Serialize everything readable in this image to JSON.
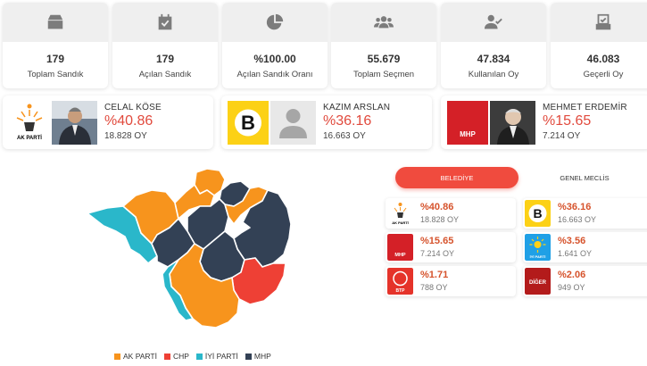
{
  "stats": [
    {
      "icon": "ballot-box-icon",
      "value": "179",
      "label": "Toplam Sandık"
    },
    {
      "icon": "calendar-check-icon",
      "value": "179",
      "label": "Açılan Sandık"
    },
    {
      "icon": "pie-chart-icon",
      "value": "%100.00",
      "label": "Açılan Sandık Oranı"
    },
    {
      "icon": "users-icon",
      "value": "55.679",
      "label": "Toplam Seçmen"
    },
    {
      "icon": "user-check-icon",
      "value": "47.834",
      "label": "Kullanılan Oy"
    },
    {
      "icon": "checked-box-icon",
      "value": "46.083",
      "label": "Geçerli Oy"
    }
  ],
  "candidates": [
    {
      "name": "CELAL KÖSE",
      "percent": "%40.86",
      "votes": "18.828 OY",
      "party": "AK PARTİ"
    },
    {
      "name": "KAZIM ARSLAN",
      "percent": "%36.16",
      "votes": "16.663 OY",
      "party": "B"
    },
    {
      "name": "MEHMET ERDEMİR",
      "percent": "%15.65",
      "votes": "7.214 OY",
      "party": "MHP"
    }
  ],
  "tabs": {
    "active": "BELEDİYE",
    "other": "GENEL MECLİS"
  },
  "results": [
    {
      "party": "AK PARTİ",
      "percent": "%40.86",
      "votes": "18.828 OY"
    },
    {
      "party": "B",
      "percent": "%36.16",
      "votes": "16.663 OY"
    },
    {
      "party": "MHP",
      "percent": "%15.65",
      "votes": "7.214 OY"
    },
    {
      "party": "İYİ PARTİ",
      "percent": "%3.56",
      "votes": "1.641 OY"
    },
    {
      "party": "BTP",
      "percent": "%1.71",
      "votes": "788 OY"
    },
    {
      "party": "DİĞER",
      "percent": "%2.06",
      "votes": "949 OY"
    }
  ],
  "legend": [
    {
      "label": "AK PARTİ",
      "color": "#f7941d"
    },
    {
      "label": "CHP",
      "color": "#ee4035"
    },
    {
      "label": "İYİ PARTİ",
      "color": "#2ab7ca"
    },
    {
      "label": "MHP",
      "color": "#334155"
    }
  ],
  "colors": {
    "accent": "#f04b3e",
    "akp": "#f7941d",
    "chp": "#ee4035",
    "iyi": "#2ab7ca",
    "mhp": "#334155"
  }
}
